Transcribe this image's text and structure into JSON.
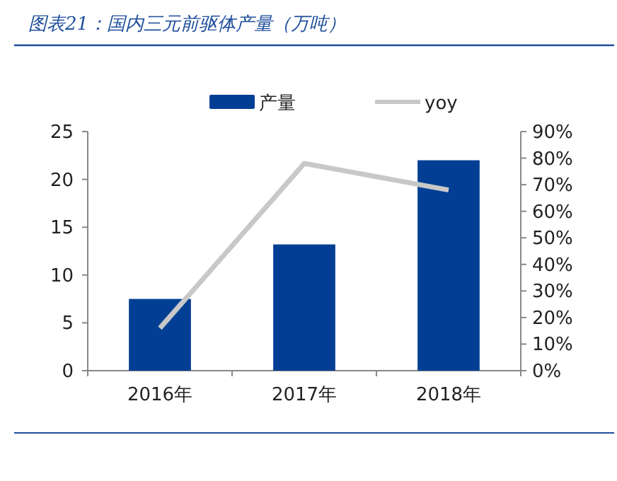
{
  "chart_data": {
    "type": "bar",
    "title": "图表21：国内三元前驱体产量（万吨）",
    "categories": [
      "2016年",
      "2017年",
      "2018年"
    ],
    "series": [
      {
        "name": "产量",
        "color": "#023f94",
        "values": [
          7.5,
          13.2,
          22.0
        ]
      },
      {
        "name": "yoy",
        "type": "line",
        "axis": "y2",
        "color": "#c8c8c8",
        "values": [
          16,
          78,
          68
        ]
      }
    ],
    "ylim": [
      0,
      25
    ],
    "yticks": [
      0,
      5,
      10,
      15,
      20,
      25
    ],
    "y2lim": [
      0,
      90
    ],
    "y2ticks": [
      {
        "value": 0,
        "label": "0%"
      },
      {
        "value": 10,
        "label": "10%"
      },
      {
        "value": 20,
        "label": "20%"
      },
      {
        "value": 30,
        "label": "30%"
      },
      {
        "value": 40,
        "label": "40%"
      },
      {
        "value": 50,
        "label": "50%"
      },
      {
        "value": 60,
        "label": "60%"
      },
      {
        "value": 70,
        "label": "70%"
      },
      {
        "value": 80,
        "label": "80%"
      },
      {
        "value": 90,
        "label": "90%"
      }
    ],
    "grid": false,
    "legend": "top"
  }
}
